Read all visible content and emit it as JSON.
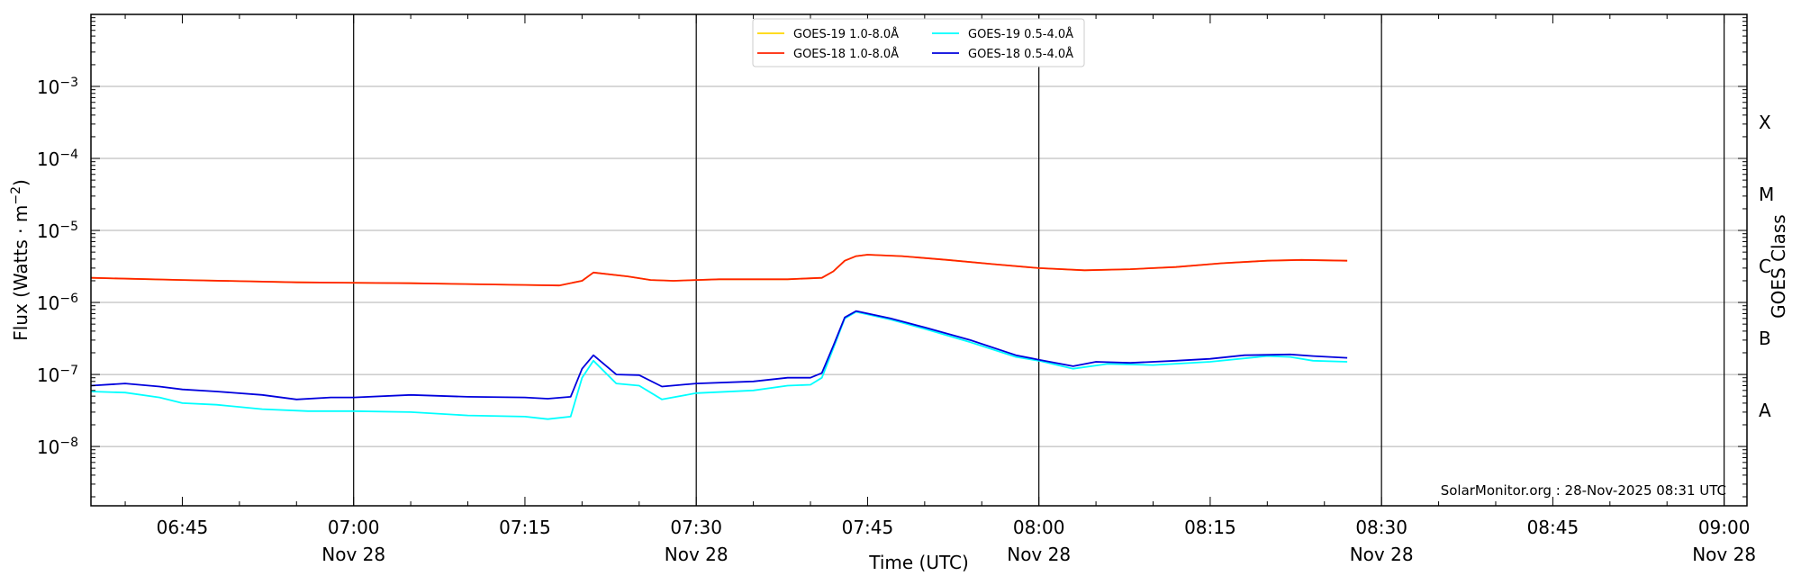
{
  "chart_data": {
    "type": "line",
    "xlabel": "Time (UTC)",
    "ylabel_main": "Flux (Watts · m",
    "ylabel_sup": "−2",
    "ylabel_close": ")",
    "y2label": "GOES Class",
    "yscale": "log",
    "xlim": [
      "06:37",
      "09:02"
    ],
    "ylim": [
      1.5e-09,
      0.01
    ],
    "grid": "horizontal at decades",
    "x_major_ticks": [
      {
        "time": "06:45",
        "label": "06:45",
        "sub": ""
      },
      {
        "time": "07:00",
        "label": "07:00",
        "sub": "Nov 28"
      },
      {
        "time": "07:15",
        "label": "07:15",
        "sub": ""
      },
      {
        "time": "07:30",
        "label": "07:30",
        "sub": "Nov 28"
      },
      {
        "time": "07:45",
        "label": "07:45",
        "sub": ""
      },
      {
        "time": "08:00",
        "label": "08:00",
        "sub": "Nov 28"
      },
      {
        "time": "08:15",
        "label": "08:15",
        "sub": ""
      },
      {
        "time": "08:30",
        "label": "08:30",
        "sub": "Nov 28"
      },
      {
        "time": "08:45",
        "label": "08:45",
        "sub": ""
      },
      {
        "time": "09:00",
        "label": "09:00",
        "sub": "Nov 28"
      }
    ],
    "y_ticks": [
      {
        "value": 1e-08,
        "base": "10",
        "exp": "−8"
      },
      {
        "value": 1e-07,
        "base": "10",
        "exp": "−7"
      },
      {
        "value": 1e-06,
        "base": "10",
        "exp": "−6"
      },
      {
        "value": 1e-05,
        "base": "10",
        "exp": "−5"
      },
      {
        "value": 0.0001,
        "base": "10",
        "exp": "−4"
      },
      {
        "value": 0.001,
        "base": "10",
        "exp": "−3"
      }
    ],
    "goes_classes": [
      {
        "label": "A",
        "value": 3.16e-08
      },
      {
        "label": "B",
        "value": 3.16e-07
      },
      {
        "label": "C",
        "value": 3.16e-06
      },
      {
        "label": "M",
        "value": 3.16e-05
      },
      {
        "label": "X",
        "value": 0.000316
      }
    ],
    "vertical_lines": [
      "07:00",
      "07:30",
      "08:00",
      "08:30",
      "09:00"
    ],
    "annotation": "SolarMonitor.org : 28-Nov-2025 08:31 UTC",
    "legend_position": "top-center",
    "series": [
      {
        "name": "GOES-19 1.0-8.0Å",
        "color": "#FFD700",
        "points": [
          [
            "06:37",
            2.2e-06
          ],
          [
            "06:45",
            2.05e-06
          ],
          [
            "06:55",
            1.9e-06
          ],
          [
            "07:05",
            1.85e-06
          ],
          [
            "07:15",
            1.75e-06
          ],
          [
            "07:18",
            1.72e-06
          ],
          [
            "07:20",
            2e-06
          ],
          [
            "07:21",
            2.6e-06
          ],
          [
            "07:24",
            2.3e-06
          ],
          [
            "07:26",
            2.05e-06
          ],
          [
            "07:28",
            2e-06
          ],
          [
            "07:32",
            2.1e-06
          ],
          [
            "07:38",
            2.1e-06
          ],
          [
            "07:41",
            2.2e-06
          ],
          [
            "07:42",
            2.7e-06
          ],
          [
            "07:43",
            3.8e-06
          ],
          [
            "07:44",
            4.4e-06
          ],
          [
            "07:45",
            4.6e-06
          ],
          [
            "07:48",
            4.4e-06
          ],
          [
            "07:52",
            3.9e-06
          ],
          [
            "07:56",
            3.4e-06
          ],
          [
            "08:00",
            3e-06
          ],
          [
            "08:04",
            2.8e-06
          ],
          [
            "08:08",
            2.9e-06
          ],
          [
            "08:12",
            3.1e-06
          ],
          [
            "08:16",
            3.5e-06
          ],
          [
            "08:20",
            3.8e-06
          ],
          [
            "08:23",
            3.9e-06
          ],
          [
            "08:27",
            3.8e-06
          ]
        ]
      },
      {
        "name": "GOES-18 1.0-8.0Å",
        "color": "#FF2200",
        "points": [
          [
            "06:37",
            2.2e-06
          ],
          [
            "06:45",
            2.05e-06
          ],
          [
            "06:55",
            1.9e-06
          ],
          [
            "07:05",
            1.85e-06
          ],
          [
            "07:15",
            1.75e-06
          ],
          [
            "07:18",
            1.72e-06
          ],
          [
            "07:20",
            2e-06
          ],
          [
            "07:21",
            2.6e-06
          ],
          [
            "07:24",
            2.3e-06
          ],
          [
            "07:26",
            2.05e-06
          ],
          [
            "07:28",
            2e-06
          ],
          [
            "07:32",
            2.1e-06
          ],
          [
            "07:38",
            2.1e-06
          ],
          [
            "07:41",
            2.2e-06
          ],
          [
            "07:42",
            2.7e-06
          ],
          [
            "07:43",
            3.8e-06
          ],
          [
            "07:44",
            4.4e-06
          ],
          [
            "07:45",
            4.6e-06
          ],
          [
            "07:48",
            4.4e-06
          ],
          [
            "07:52",
            3.9e-06
          ],
          [
            "07:56",
            3.4e-06
          ],
          [
            "08:00",
            3e-06
          ],
          [
            "08:04",
            2.8e-06
          ],
          [
            "08:08",
            2.9e-06
          ],
          [
            "08:12",
            3.1e-06
          ],
          [
            "08:16",
            3.5e-06
          ],
          [
            "08:20",
            3.8e-06
          ],
          [
            "08:23",
            3.9e-06
          ],
          [
            "08:27",
            3.8e-06
          ]
        ]
      },
      {
        "name": "GOES-19 0.5-4.0Å",
        "color": "#00FFFF",
        "points": [
          [
            "06:37",
            5.8e-08
          ],
          [
            "06:40",
            5.6e-08
          ],
          [
            "06:43",
            4.8e-08
          ],
          [
            "06:45",
            4e-08
          ],
          [
            "06:48",
            3.8e-08
          ],
          [
            "06:52",
            3.3e-08
          ],
          [
            "06:56",
            3.1e-08
          ],
          [
            "07:00",
            3.1e-08
          ],
          [
            "07:05",
            3e-08
          ],
          [
            "07:10",
            2.7e-08
          ],
          [
            "07:15",
            2.6e-08
          ],
          [
            "07:17",
            2.4e-08
          ],
          [
            "07:19",
            2.6e-08
          ],
          [
            "07:20",
            9e-08
          ],
          [
            "07:21",
            1.55e-07
          ],
          [
            "07:23",
            7.5e-08
          ],
          [
            "07:25",
            7e-08
          ],
          [
            "07:27",
            4.5e-08
          ],
          [
            "07:30",
            5.5e-08
          ],
          [
            "07:35",
            6e-08
          ],
          [
            "07:38",
            7e-08
          ],
          [
            "07:40",
            7.2e-08
          ],
          [
            "07:41",
            9e-08
          ],
          [
            "07:42",
            2.3e-07
          ],
          [
            "07:43",
            6e-07
          ],
          [
            "07:44",
            7.4e-07
          ],
          [
            "07:47",
            5.8e-07
          ],
          [
            "07:50",
            4.3e-07
          ],
          [
            "07:54",
            2.8e-07
          ],
          [
            "07:58",
            1.75e-07
          ],
          [
            "08:00",
            1.55e-07
          ],
          [
            "08:03",
            1.2e-07
          ],
          [
            "08:06",
            1.4e-07
          ],
          [
            "08:10",
            1.35e-07
          ],
          [
            "08:15",
            1.5e-07
          ],
          [
            "08:20",
            1.8e-07
          ],
          [
            "08:22",
            1.75e-07
          ],
          [
            "08:24",
            1.55e-07
          ],
          [
            "08:27",
            1.5e-07
          ]
        ]
      },
      {
        "name": "GOES-18 0.5-4.0Å",
        "color": "#0000DD",
        "points": [
          [
            "06:37",
            7e-08
          ],
          [
            "06:40",
            7.5e-08
          ],
          [
            "06:43",
            6.8e-08
          ],
          [
            "06:45",
            6.2e-08
          ],
          [
            "06:48",
            5.8e-08
          ],
          [
            "06:52",
            5.2e-08
          ],
          [
            "06:55",
            4.5e-08
          ],
          [
            "06:58",
            4.8e-08
          ],
          [
            "07:00",
            4.8e-08
          ],
          [
            "07:05",
            5.2e-08
          ],
          [
            "07:10",
            4.9e-08
          ],
          [
            "07:15",
            4.8e-08
          ],
          [
            "07:17",
            4.6e-08
          ],
          [
            "07:19",
            4.9e-08
          ],
          [
            "07:20",
            1.2e-07
          ],
          [
            "07:21",
            1.85e-07
          ],
          [
            "07:23",
            1e-07
          ],
          [
            "07:25",
            9.8e-08
          ],
          [
            "07:27",
            6.8e-08
          ],
          [
            "07:30",
            7.5e-08
          ],
          [
            "07:35",
            8e-08
          ],
          [
            "07:38",
            9e-08
          ],
          [
            "07:40",
            9e-08
          ],
          [
            "07:41",
            1.05e-07
          ],
          [
            "07:42",
            2.5e-07
          ],
          [
            "07:43",
            6.2e-07
          ],
          [
            "07:44",
            7.6e-07
          ],
          [
            "07:47",
            6e-07
          ],
          [
            "07:50",
            4.5e-07
          ],
          [
            "07:54",
            3e-07
          ],
          [
            "07:58",
            1.85e-07
          ],
          [
            "08:00",
            1.6e-07
          ],
          [
            "08:03",
            1.3e-07
          ],
          [
            "08:05",
            1.5e-07
          ],
          [
            "08:08",
            1.45e-07
          ],
          [
            "08:12",
            1.55e-07
          ],
          [
            "08:15",
            1.65e-07
          ],
          [
            "08:18",
            1.85e-07
          ],
          [
            "08:22",
            1.9e-07
          ],
          [
            "08:24",
            1.8e-07
          ],
          [
            "08:27",
            1.7e-07
          ]
        ]
      }
    ]
  }
}
